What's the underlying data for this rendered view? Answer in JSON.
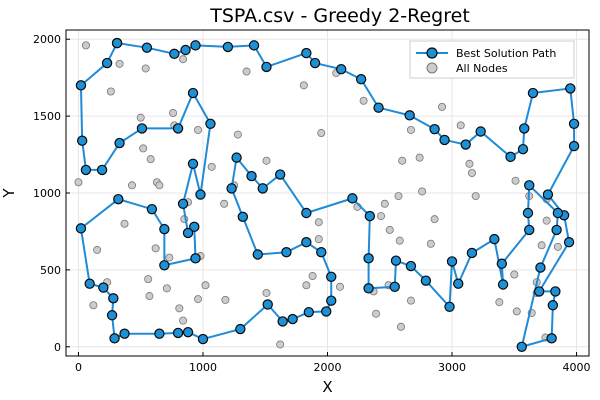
{
  "chart_data": {
    "type": "scatter",
    "title": "TSPA.csv - Greedy 2-Regret",
    "xlabel": "X",
    "ylabel": "Y",
    "xlim": [
      -100,
      4100
    ],
    "ylim": [
      -60,
      2060
    ],
    "xticks": [
      0,
      1000,
      2000,
      3000,
      4000
    ],
    "yticks": [
      0,
      500,
      1000,
      1500,
      2000
    ],
    "grid": true,
    "legend": "top-right",
    "colors": {
      "path": "#1f8bd8",
      "marker_fill": "#1e90d6",
      "marker_edge": "#0a0a0a",
      "node": "#cccccc",
      "node_edge": "#777777"
    },
    "series": [
      {
        "name": "Best Solution Path",
        "kind": "line+marker",
        "points": [
          [
            310,
            1975
          ],
          [
            550,
            1945
          ],
          [
            770,
            1905
          ],
          [
            860,
            1930
          ],
          [
            940,
            1960
          ],
          [
            1200,
            1950
          ],
          [
            1410,
            1960
          ],
          [
            1510,
            1820
          ],
          [
            1830,
            1910
          ],
          [
            1900,
            1845
          ],
          [
            2110,
            1805
          ],
          [
            2270,
            1740
          ],
          [
            2410,
            1555
          ],
          [
            2660,
            1505
          ],
          [
            2860,
            1415
          ],
          [
            2940,
            1345
          ],
          [
            3110,
            1315
          ],
          [
            3230,
            1400
          ],
          [
            3470,
            1235
          ],
          [
            3570,
            1285
          ],
          [
            3580,
            1420
          ],
          [
            3650,
            1650
          ],
          [
            3950,
            1680
          ],
          [
            3980,
            1450
          ],
          [
            3980,
            1305
          ],
          [
            3770,
            990
          ],
          [
            3900,
            855
          ],
          [
            3940,
            680
          ],
          [
            3700,
            360
          ],
          [
            3830,
            360
          ],
          [
            3810,
            270
          ],
          [
            3800,
            55
          ],
          [
            3560,
            0
          ],
          [
            3710,
            515
          ],
          [
            3840,
            760
          ],
          [
            3850,
            870
          ],
          [
            3620,
            1050
          ],
          [
            3610,
            870
          ],
          [
            3620,
            760
          ],
          [
            3400,
            540
          ],
          [
            3410,
            405
          ],
          [
            3340,
            700
          ],
          [
            3160,
            610
          ],
          [
            3050,
            410
          ],
          [
            3000,
            555
          ],
          [
            2980,
            260
          ],
          [
            2790,
            430
          ],
          [
            2670,
            525
          ],
          [
            2550,
            560
          ],
          [
            2540,
            390
          ],
          [
            2330,
            380
          ],
          [
            2330,
            575
          ],
          [
            2340,
            850
          ],
          [
            2200,
            965
          ],
          [
            1830,
            870
          ],
          [
            1620,
            1120
          ],
          [
            1480,
            1030
          ],
          [
            1390,
            1110
          ],
          [
            1270,
            1230
          ],
          [
            1230,
            1030
          ],
          [
            1320,
            845
          ],
          [
            1440,
            600
          ],
          [
            1670,
            615
          ],
          [
            1830,
            680
          ],
          [
            1950,
            615
          ],
          [
            2030,
            455
          ],
          [
            2030,
            300
          ],
          [
            1990,
            230
          ],
          [
            1850,
            225
          ],
          [
            1720,
            180
          ],
          [
            1640,
            165
          ],
          [
            1520,
            275
          ],
          [
            1300,
            115
          ],
          [
            1000,
            50
          ],
          [
            880,
            95
          ],
          [
            800,
            90
          ],
          [
            650,
            85
          ],
          [
            370,
            85
          ],
          [
            290,
            55
          ],
          [
            270,
            205
          ],
          [
            280,
            315
          ],
          [
            200,
            385
          ],
          [
            90,
            410
          ],
          [
            20,
            770
          ],
          [
            320,
            960
          ],
          [
            590,
            895
          ],
          [
            690,
            765
          ],
          [
            690,
            530
          ],
          [
            940,
            575
          ],
          [
            930,
            780
          ],
          [
            880,
            740
          ],
          [
            840,
            930
          ],
          [
            920,
            1190
          ],
          [
            980,
            990
          ],
          [
            1060,
            1450
          ],
          [
            920,
            1650
          ],
          [
            800,
            1420
          ],
          [
            510,
            1420
          ],
          [
            330,
            1325
          ],
          [
            190,
            1150
          ],
          [
            60,
            1150
          ],
          [
            30,
            1340
          ],
          [
            20,
            1700
          ],
          [
            230,
            1845
          ],
          [
            310,
            1975
          ]
        ]
      },
      {
        "name": "All Nodes",
        "kind": "marker",
        "points": [
          [
            60,
            1960
          ],
          [
            330,
            1840
          ],
          [
            540,
            1810
          ],
          [
            840,
            1870
          ],
          [
            1350,
            1790
          ],
          [
            1810,
            1700
          ],
          [
            2070,
            1780
          ],
          [
            2290,
            1600
          ],
          [
            2670,
            1410
          ],
          [
            2920,
            1560
          ],
          [
            3140,
            1190
          ],
          [
            3160,
            1130
          ],
          [
            3510,
            1080
          ],
          [
            3190,
            980
          ],
          [
            2740,
            1230
          ],
          [
            2600,
            1210
          ],
          [
            1510,
            1210
          ],
          [
            1250,
            1050
          ],
          [
            760,
            1520
          ],
          [
            770,
            1440
          ],
          [
            520,
            1290
          ],
          [
            580,
            1220
          ],
          [
            630,
            1070
          ],
          [
            430,
            1050
          ],
          [
            370,
            800
          ],
          [
            150,
            630
          ],
          [
            230,
            420
          ],
          [
            1950,
            1390
          ],
          [
            960,
            1410
          ],
          [
            1170,
            930
          ],
          [
            1930,
            810
          ],
          [
            1930,
            700
          ],
          [
            2430,
            850
          ],
          [
            2460,
            930
          ],
          [
            2570,
            980
          ],
          [
            2760,
            1010
          ],
          [
            2860,
            830
          ],
          [
            2240,
            910
          ],
          [
            2830,
            670
          ],
          [
            2500,
            760
          ],
          [
            2580,
            690
          ],
          [
            3620,
            980
          ],
          [
            3760,
            960
          ],
          [
            3760,
            820
          ],
          [
            3720,
            660
          ],
          [
            3500,
            470
          ],
          [
            3680,
            420
          ],
          [
            3680,
            350
          ],
          [
            3800,
            270
          ],
          [
            3640,
            220
          ],
          [
            3750,
            60
          ],
          [
            3520,
            230
          ],
          [
            3380,
            290
          ],
          [
            2670,
            300
          ],
          [
            2490,
            400
          ],
          [
            2370,
            360
          ],
          [
            2590,
            130
          ],
          [
            2390,
            215
          ],
          [
            2100,
            390
          ],
          [
            1880,
            460
          ],
          [
            1510,
            350
          ],
          [
            1830,
            400
          ],
          [
            1620,
            15
          ],
          [
            1180,
            305
          ],
          [
            1020,
            400
          ],
          [
            980,
            590
          ],
          [
            730,
            580
          ],
          [
            620,
            640
          ],
          [
            850,
            830
          ],
          [
            880,
            940
          ],
          [
            650,
            1050
          ],
          [
            1280,
            1380
          ],
          [
            500,
            1490
          ],
          [
            260,
            1660
          ],
          [
            560,
            440
          ],
          [
            710,
            380
          ],
          [
            960,
            310
          ],
          [
            810,
            250
          ],
          [
            1070,
            1170
          ],
          [
            570,
            330
          ],
          [
            120,
            270
          ],
          [
            840,
            170
          ],
          [
            0,
            1070
          ],
          [
            3850,
            650
          ],
          [
            3070,
            1440
          ]
        ]
      }
    ]
  }
}
